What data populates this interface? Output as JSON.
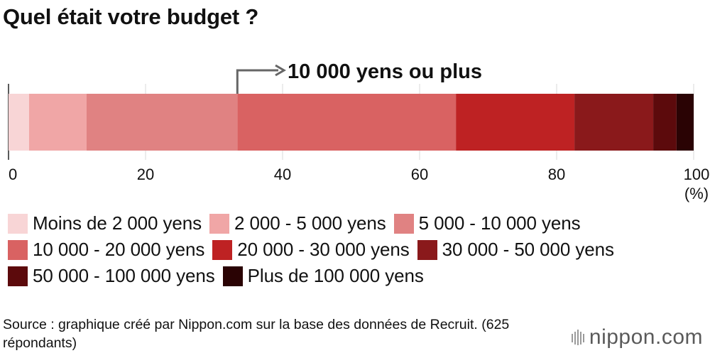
{
  "title": "Quel était votre budget ?",
  "chart_data": {
    "type": "bar",
    "orientation": "horizontal",
    "stacked": true,
    "title": "Quel était votre budget ?",
    "xlim": [
      0,
      100
    ],
    "x_ticks": [
      0,
      20,
      40,
      60,
      80,
      100
    ],
    "x_unit": "(%)",
    "grid": true,
    "annotation": {
      "text": "10 000 yens ou plus",
      "at": 33.4
    },
    "series": [
      {
        "name": "Moins de 2 000 yens",
        "value": 3.0,
        "color": "#f8d5d6"
      },
      {
        "name": "2 000 - 5 000 yens",
        "value": 8.4,
        "color": "#f0a6a6"
      },
      {
        "name": "5 000 - 10 000 yens",
        "value": 22.0,
        "color": "#e08282"
      },
      {
        "name": "10 000 - 20 000 yens",
        "value": 31.9,
        "color": "#d96262"
      },
      {
        "name": "20 000 - 30 000 yens",
        "value": 17.3,
        "color": "#be2223"
      },
      {
        "name": "30 000 - 50 000 yens",
        "value": 11.5,
        "color": "#8a191b"
      },
      {
        "name": "50 000 - 100 000 yens",
        "value": 3.4,
        "color": "#5c0a0c"
      },
      {
        "name": "Plus de 100 000 yens",
        "value": 2.5,
        "color": "#2a0304"
      }
    ]
  },
  "source": "Source : graphique créé par Nippon.com sur la base des données de Recruit. (625 répondants)",
  "logo": "nippon.com"
}
